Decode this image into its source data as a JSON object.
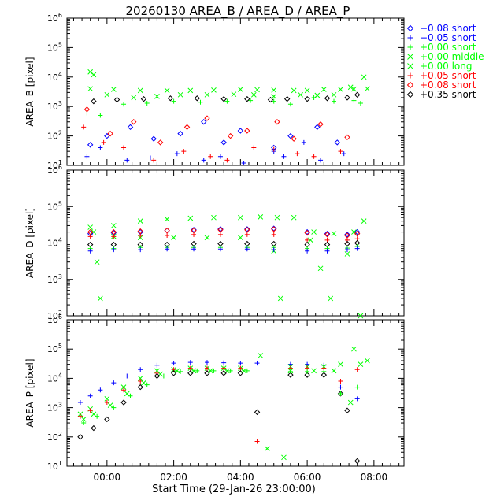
{
  "chart_data": {
    "title": "20260130 AREA_B / AREA_D / AREA_P",
    "xlabel": "Start Time (29-Jan-26 23:00:00)",
    "x_unit": "hours since 29-Jan-26 23:00:00",
    "xlim": [
      -0.2,
      9.9
    ],
    "x_ticks": [
      1,
      3,
      5,
      7,
      9
    ],
    "x_tick_labels": [
      "00:00",
      "02:00",
      "04:00",
      "06:00",
      "08:00"
    ],
    "legend": [
      {
        "marker": "diamond",
        "color": "#0000ff",
        "text": "−0.08 short"
      },
      {
        "marker": "plus",
        "color": "#0000ff",
        "text": "−0.05 short"
      },
      {
        "marker": "plus",
        "color": "#00ff00",
        "text": "+0.00 short"
      },
      {
        "marker": "x",
        "color": "#00ff00",
        "text": "+0.00 middle"
      },
      {
        "marker": "x",
        "color": "#00ff00",
        "text": "+0.00 long"
      },
      {
        "marker": "plus",
        "color": "#ff0000",
        "text": "+0.05 short"
      },
      {
        "marker": "diamond",
        "color": "#ff0000",
        "text": "+0.08 short"
      },
      {
        "marker": "diamond",
        "color": "#000000",
        "text": "+0.35 short"
      }
    ],
    "panels": [
      {
        "type": "scatter",
        "ylabel": "AREA_B [pixel]",
        "yscale": "log",
        "ylim_exp": [
          1,
          6
        ],
        "ytick_exponents": [
          1,
          2,
          3,
          4,
          5,
          6
        ],
        "series": [
          {
            "name": "+0.00 long",
            "marker": "x",
            "color": "#00ff00",
            "x": [
              0.5,
              1.2,
              2.0,
              2.8,
              3.5,
              4.2,
              5.0,
              5.5,
              6.0,
              6.6,
              7.0,
              7.5,
              8.0,
              8.4,
              8.8
            ],
            "y": [
              4000,
              3800,
              3500,
              3500,
              3500,
              3600,
              3800,
              3700,
              3600,
              3500,
              3500,
              3800,
              3800,
              3900,
              4000
            ]
          },
          {
            "name": "+0.00 middle",
            "marker": "x",
            "color": "#00ff00",
            "x": [
              0.5,
              0.6,
              1.0,
              1.8,
              2.5,
              3.2,
              4.0,
              4.8,
              5.4,
              6.0,
              6.8,
              7.3,
              7.8,
              8.3,
              8.7
            ],
            "y": [
              15000,
              12000,
              2500,
              2000,
              2200,
              2500,
              2500,
              2600,
              2500,
              2200,
              2500,
              2400,
              2500,
              4500,
              10000
            ]
          },
          {
            "name": "+0.00 short",
            "marker": "plus",
            "color": "#00ff00",
            "x": [
              0.4,
              0.8,
              1.5,
              2.2,
              3.0,
              3.8,
              4.6,
              5.3,
              6.0,
              6.5,
              7.2,
              7.8,
              8.4,
              8.6
            ],
            "y": [
              600,
              500,
              1200,
              1300,
              1500,
              1400,
              1500,
              1600,
              1500,
              1200,
              2000,
              1500,
              1600,
              1300
            ]
          },
          {
            "name": "+0.35 short",
            "marker": "diamond",
            "color": "#000000",
            "x": [
              0.6,
              1.3,
              2.1,
              2.9,
              3.7,
              4.5,
              5.2,
              5.9,
              6.4,
              7.0,
              7.6,
              8.2,
              8.5
            ],
            "y": [
              1500,
              1700,
              1800,
              1900,
              1900,
              1800,
              1800,
              1700,
              1800,
              1800,
              1900,
              2000,
              2500
            ]
          },
          {
            "name": "−0.05 short",
            "marker": "plus",
            "color": "#0000ff",
            "x": [
              0.4,
              0.8,
              1.6,
              2.3,
              3.1,
              3.9,
              4.4,
              5.1,
              6.0,
              6.3,
              6.9,
              7.4,
              8.1
            ],
            "y": [
              20,
              40,
              15,
              18,
              25,
              15,
              20,
              12,
              30,
              20,
              60,
              15,
              25
            ]
          },
          {
            "name": "+0.05 short",
            "marker": "plus",
            "color": "#ff0000",
            "x": [
              0.3,
              0.9,
              1.5,
              2.4,
              3.3,
              4.1,
              4.6,
              5.4,
              6.0,
              6.7,
              7.2,
              8.0
            ],
            "y": [
              200,
              60,
              40,
              15,
              30,
              20,
              15,
              40,
              35,
              25,
              20,
              30
            ]
          },
          {
            "name": "−0.08 short",
            "marker": "diamond",
            "color": "#0000ff",
            "x": [
              0.5,
              1.0,
              1.7,
              2.4,
              3.2,
              3.9,
              4.5,
              5.0,
              6.0,
              6.5,
              7.3,
              7.9
            ],
            "y": [
              50,
              100,
              200,
              80,
              120,
              300,
              60,
              150,
              40,
              100,
              200,
              60
            ]
          },
          {
            "name": "+0.08 short",
            "marker": "diamond",
            "color": "#ff0000",
            "x": [
              0.4,
              1.1,
              1.8,
              2.6,
              3.4,
              4.0,
              4.7,
              5.2,
              6.1,
              6.6,
              7.4,
              8.2
            ],
            "y": [
              800,
              120,
              300,
              60,
              200,
              400,
              100,
              150,
              300,
              80,
              250,
              90
            ]
          }
        ]
      },
      {
        "type": "scatter",
        "ylabel": "AREA_D [pixel]",
        "yscale": "log",
        "ylim_exp": [
          2,
          6
        ],
        "ytick_exponents": [
          2,
          3,
          4,
          5,
          6
        ],
        "series": [
          {
            "name": "+0.00 long",
            "marker": "x",
            "color": "#00ff00",
            "x": [
              0.5,
              1.2,
              2.0,
              2.8,
              3.5,
              4.2,
              5.0,
              5.6,
              6.1,
              6.6,
              7.2,
              7.8,
              8.4,
              8.7
            ],
            "y": [
              27000,
              30000,
              40000,
              45000,
              48000,
              50000,
              50000,
              52000,
              50000,
              50000,
              20000,
              18000,
              20000,
              40000
            ]
          },
          {
            "name": "+0.00 middle",
            "marker": "x",
            "color": "#00ff00",
            "x": [
              0.6,
              0.7,
              0.8,
              1.2,
              2.0,
              3.0,
              4.0,
              5.0,
              6.0,
              6.2,
              7.1,
              7.4,
              7.7,
              8.2,
              8.6
            ],
            "y": [
              20000,
              3000,
              300,
              15000,
              14000,
              14000,
              14000,
              14000,
              6000,
              300,
              12000,
              2000,
              300,
              5000,
              100
            ]
          },
          {
            "name": "−0.08 short",
            "marker": "diamond",
            "color": "#0000ff",
            "x": [
              0.5,
              1.2,
              2.0,
              2.8,
              3.6,
              4.4,
              5.2,
              6.0,
              7.0,
              7.6,
              8.2,
              8.5
            ],
            "y": [
              18000,
              19000,
              20000,
              22000,
              23000,
              24000,
              24000,
              25000,
              20000,
              18000,
              17000,
              20000
            ]
          },
          {
            "name": "+0.08 short",
            "marker": "diamond",
            "color": "#ff0000",
            "x": [
              0.5,
              1.2,
              2.0,
              2.8,
              3.6,
              4.4,
              5.2,
              6.0,
              7.0,
              7.6,
              8.2,
              8.5
            ],
            "y": [
              20000,
              20000,
              21000,
              22000,
              22000,
              23000,
              23000,
              24000,
              19000,
              17000,
              16000,
              18000
            ]
          },
          {
            "name": "+0.05 short",
            "marker": "plus",
            "color": "#ff0000",
            "x": [
              0.5,
              1.2,
              2.0,
              2.8,
              3.6,
              4.4,
              5.2,
              6.0,
              7.0,
              7.6,
              8.2,
              8.5
            ],
            "y": [
              15000,
              15000,
              16000,
              16000,
              17000,
              17000,
              17000,
              17000,
              12000,
              12000,
              12000,
              13000
            ]
          },
          {
            "name": "+0.35 short",
            "marker": "diamond",
            "color": "#000000",
            "x": [
              0.5,
              1.2,
              2.0,
              2.8,
              3.6,
              4.4,
              5.2,
              6.0,
              7.0,
              7.6,
              8.2,
              8.5
            ],
            "y": [
              9000,
              9000,
              9000,
              9000,
              9500,
              9500,
              9500,
              9500,
              9000,
              9000,
              9500,
              10000
            ]
          },
          {
            "name": "+0.00 short",
            "marker": "plus",
            "color": "#00ff00",
            "x": [
              0.5,
              1.2,
              2.0,
              2.8,
              3.6,
              4.4,
              5.2,
              6.0,
              7.0,
              7.6,
              8.2,
              8.5
            ],
            "y": [
              7000,
              7000,
              7500,
              7500,
              7500,
              7500,
              7500,
              7500,
              7000,
              7000,
              7200,
              8000
            ]
          },
          {
            "name": "−0.05 short",
            "marker": "plus",
            "color": "#0000ff",
            "x": [
              0.5,
              1.2,
              2.0,
              2.8,
              3.6,
              4.4,
              5.2,
              6.0,
              7.0,
              7.6,
              8.2,
              8.5
            ],
            "y": [
              6000,
              6500,
              6500,
              6800,
              6800,
              6800,
              6800,
              6500,
              6000,
              6000,
              6500,
              7000
            ]
          }
        ]
      },
      {
        "type": "scatter",
        "ylabel": "AREA_P [pixel]",
        "yscale": "log",
        "ylim_exp": [
          1,
          6
        ],
        "ytick_exponents": [
          1,
          2,
          3,
          4,
          5,
          6
        ],
        "series": [
          {
            "name": "−0.05 short",
            "marker": "plus",
            "color": "#0000ff",
            "x": [
              0.2,
              0.5,
              0.8,
              1.2,
              1.6,
              2.0,
              2.5,
              3.0,
              3.5,
              4.0,
              4.5,
              5.0,
              5.5,
              6.5,
              7.0,
              7.5,
              8.0,
              8.5
            ],
            "y": [
              1500,
              2500,
              4000,
              7000,
              12000,
              20000,
              28000,
              33000,
              35000,
              35000,
              34000,
              33000,
              33000,
              30000,
              30000,
              28000,
              5000,
              2000
            ]
          },
          {
            "name": "+0.00 long",
            "marker": "x",
            "color": "#00ff00",
            "x": [
              0.2,
              0.5,
              1.0,
              1.5,
              2.0,
              2.5,
              3.0,
              3.5,
              4.0,
              4.5,
              5.0,
              5.6,
              6.5,
              7.0,
              7.5,
              8.0,
              8.4,
              8.8
            ],
            "y": [
              600,
              900,
              2000,
              5000,
              10000,
              18000,
              20000,
              22000,
              22000,
              22000,
              22000,
              60000,
              25000,
              25000,
              25000,
              30000,
              100000,
              40000
            ]
          },
          {
            "name": "+0.05 short",
            "marker": "plus",
            "color": "#ff0000",
            "x": [
              0.2,
              0.5,
              1.0,
              1.5,
              2.0,
              2.5,
              3.0,
              3.5,
              4.0,
              4.5,
              5.0,
              5.5,
              6.5,
              7.0,
              7.5,
              8.0,
              8.5
            ],
            "y": [
              500,
              800,
              1500,
              4000,
              8000,
              15000,
              20000,
              22000,
              22000,
              22000,
              22000,
              70,
              22000,
              22000,
              22000,
              8000,
              20000
            ]
          },
          {
            "name": "+0.00 middle",
            "marker": "x",
            "color": "#00ff00",
            "x": [
              0.3,
              0.6,
              1.1,
              1.6,
              2.1,
              2.6,
              3.1,
              3.6,
              4.1,
              4.6,
              5.1,
              5.8,
              6.3,
              6.5,
              7.2,
              7.8,
              8.3,
              8.6
            ],
            "y": [
              400,
              600,
              1200,
              3000,
              7000,
              14000,
              18000,
              18000,
              18000,
              18000,
              18000,
              40,
              20,
              18000,
              18000,
              18000,
              1500,
              30000
            ]
          },
          {
            "name": "+0.35 short",
            "marker": "diamond",
            "color": "#000000",
            "x": [
              0.2,
              0.6,
              1.0,
              1.5,
              2.0,
              2.5,
              3.0,
              3.5,
              4.0,
              4.5,
              5.0,
              5.5,
              6.5,
              7.0,
              7.5,
              8.0,
              8.2,
              8.5
            ],
            "y": [
              100,
              200,
              400,
              1500,
              5000,
              12000,
              15000,
              15000,
              15000,
              15000,
              15000,
              700,
              13000,
              13000,
              13000,
              3000,
              800,
              15
            ]
          },
          {
            "name": "+0.00 short",
            "marker": "plus",
            "color": "#00ff00",
            "x": [
              0.3,
              0.7,
              1.2,
              1.7,
              2.2,
              2.7,
              3.2,
              3.7,
              4.2,
              4.7,
              5.2,
              6.5,
              7.0,
              7.5,
              8.0,
              8.5
            ],
            "y": [
              300,
              500,
              1000,
              2500,
              6000,
              12000,
              17000,
              18000,
              18000,
              18000,
              18000,
              17000,
              17000,
              17000,
              3000,
              5000
            ]
          }
        ]
      }
    ]
  }
}
